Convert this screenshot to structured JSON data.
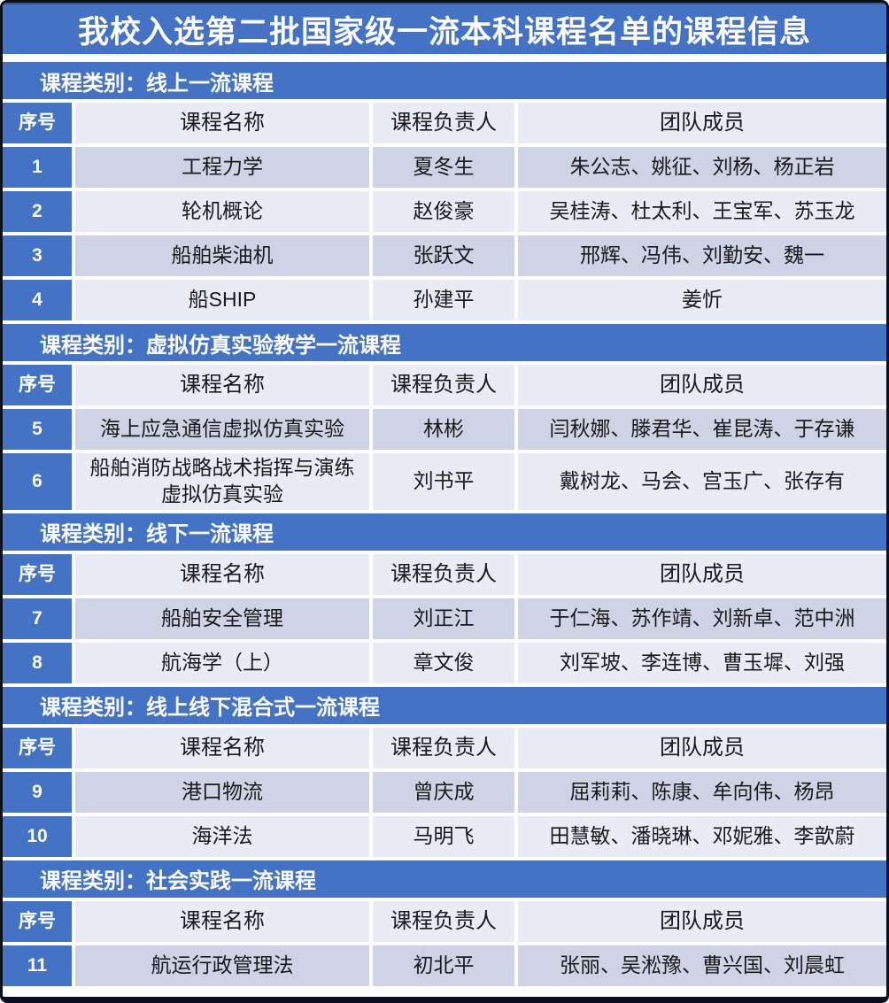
{
  "page": {
    "title": "我校入选第二批国家级一流本科课程名单的课程信息"
  },
  "colors": {
    "accent_blue": "#4472C4",
    "band_dark": "#CED3E6",
    "band_light": "#E9EBF5",
    "frame_border": "#0A0F1E",
    "title_text": "#FFFFFF"
  },
  "table": {
    "columns": [
      "序号",
      "课程名称",
      "课程负责人",
      "团队成员"
    ],
    "sections": [
      {
        "category_label": "课程类别：线上一流课程",
        "rows": [
          {
            "no": "1",
            "course": "工程力学",
            "leader": "夏冬生",
            "team": "朱公志、姚征、刘杨、杨正岩"
          },
          {
            "no": "2",
            "course": "轮机概论",
            "leader": "赵俊豪",
            "team": "吴桂涛、杜太利、王宝军、苏玉龙"
          },
          {
            "no": "3",
            "course": "船舶柴油机",
            "leader": "张跃文",
            "team": "邢辉、冯伟、刘勤安、魏一"
          },
          {
            "no": "4",
            "course": "船SHIP",
            "leader": "孙建平",
            "team": "姜忻"
          }
        ]
      },
      {
        "category_label": "课程类别：虚拟仿真实验教学一流课程",
        "rows": [
          {
            "no": "5",
            "course": "海上应急通信虚拟仿真实验",
            "leader": "林彬",
            "team": "闫秋娜、滕君华、崔昆涛、于存谦"
          },
          {
            "no": "6",
            "course": "船舶消防战略战术指挥与演练虚拟仿真实验",
            "leader": "刘书平",
            "team": "戴树龙、马会、宫玉广、张存有"
          }
        ]
      },
      {
        "category_label": "课程类别：线下一流课程",
        "rows": [
          {
            "no": "7",
            "course": "船舶安全管理",
            "leader": "刘正江",
            "team": "于仁海、苏作靖、刘新卓、范中洲"
          },
          {
            "no": "8",
            "course": "航海学（上）",
            "leader": "章文俊",
            "team": "刘军坡、李连博、曹玉墀、刘强"
          }
        ]
      },
      {
        "category_label": "课程类别：线上线下混合式一流课程",
        "rows": [
          {
            "no": "9",
            "course": "港口物流",
            "leader": "曾庆成",
            "team": "屈莉莉、陈康、牟向伟、杨昂"
          },
          {
            "no": "10",
            "course": "海洋法",
            "leader": "马明飞",
            "team": "田慧敏、潘晓琳、邓妮雅、李歆蔚"
          }
        ]
      },
      {
        "category_label": "课程类别：社会实践一流课程",
        "rows": [
          {
            "no": "11",
            "course": "航运行政管理法",
            "leader": "初北平",
            "team": "张丽、吴淞豫、曹兴国、刘晨虹"
          }
        ]
      }
    ]
  }
}
